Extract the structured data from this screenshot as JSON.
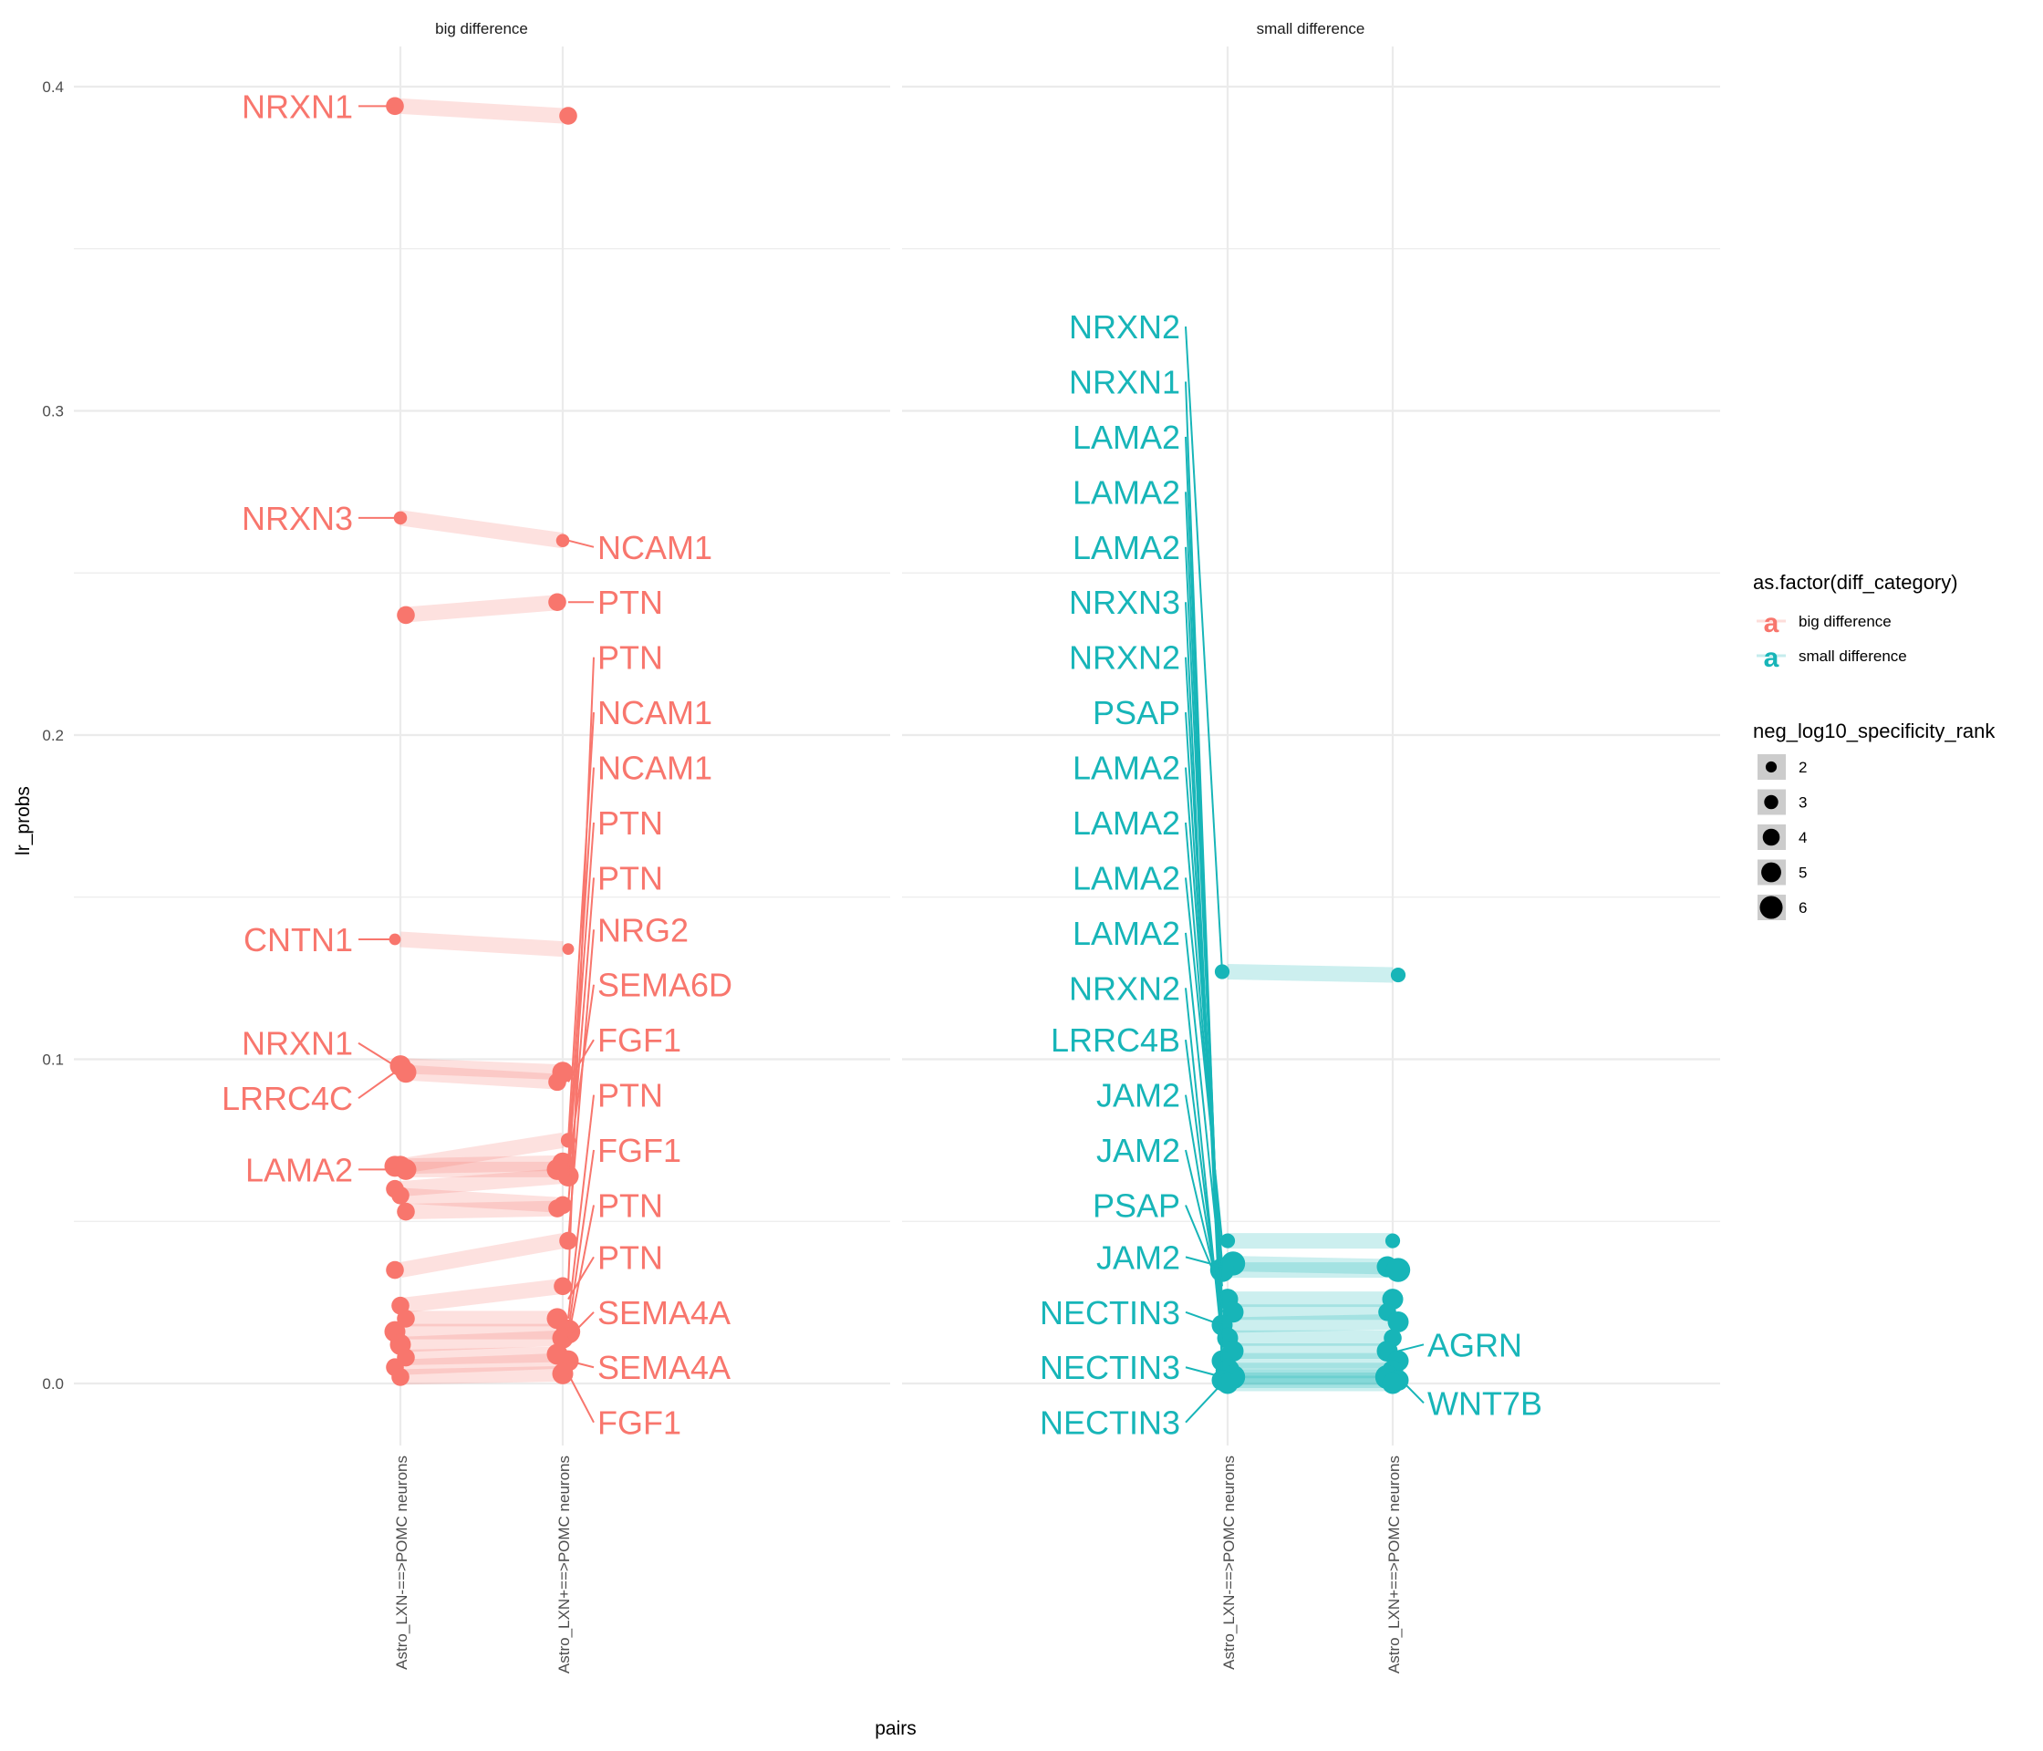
{
  "colors": {
    "big": "#F8766D",
    "small": "#17B5B8",
    "grid": "#EBEBEB"
  },
  "chart_data": {
    "type": "line",
    "ylabel": "lr_probs",
    "xlabel": "pairs",
    "ylim": [
      -0.005,
      0.415
    ],
    "yticks": [
      "0.0",
      "0.1",
      "0.2",
      "0.3",
      "0.4"
    ],
    "ytick_values": [
      0.0,
      0.1,
      0.2,
      0.3,
      0.4
    ],
    "x_categories": [
      "Astro_LXN-==>POMC neurons",
      "Astro_LXN+==>POMC neurons"
    ],
    "grid": true,
    "panels": [
      {
        "strip": "big difference",
        "color_key": "big",
        "pairs": [
          {
            "a": 0.394,
            "b": 0.391,
            "sa": 4,
            "sb": 4
          },
          {
            "a": 0.267,
            "b": 0.26,
            "sa": 2.5,
            "sb": 2.5
          },
          {
            "a": 0.237,
            "b": 0.241,
            "sa": 4,
            "sb": 4
          },
          {
            "a": 0.137,
            "b": 0.134,
            "sa": 2,
            "sb": 2
          },
          {
            "a": 0.098,
            "b": 0.096,
            "sa": 5,
            "sb": 5
          },
          {
            "a": 0.096,
            "b": 0.093,
            "sa": 5,
            "sb": 4
          },
          {
            "a": 0.067,
            "b": 0.075,
            "sa": 5,
            "sb": 3
          },
          {
            "a": 0.067,
            "b": 0.068,
            "sa": 5,
            "sb": 5
          },
          {
            "a": 0.066,
            "b": 0.066,
            "sa": 5,
            "sb": 5
          },
          {
            "a": 0.06,
            "b": 0.064,
            "sa": 4,
            "sb": 5
          },
          {
            "a": 0.058,
            "b": 0.055,
            "sa": 4,
            "sb": 4
          },
          {
            "a": 0.053,
            "b": 0.054,
            "sa": 4,
            "sb": 4
          },
          {
            "a": 0.035,
            "b": 0.044,
            "sa": 4,
            "sb": 4
          },
          {
            "a": 0.024,
            "b": 0.03,
            "sa": 4,
            "sb": 4
          },
          {
            "a": 0.02,
            "b": 0.02,
            "sa": 4,
            "sb": 5
          },
          {
            "a": 0.016,
            "b": 0.016,
            "sa": 5,
            "sb": 6
          },
          {
            "a": 0.012,
            "b": 0.014,
            "sa": 5,
            "sb": 5
          },
          {
            "a": 0.008,
            "b": 0.009,
            "sa": 4,
            "sb": 5
          },
          {
            "a": 0.005,
            "b": 0.007,
            "sa": 4,
            "sb": 5
          },
          {
            "a": 0.002,
            "b": 0.003,
            "sa": 4,
            "sb": 5
          }
        ],
        "left_labels": [
          {
            "text": "NRXN1",
            "y": 0.394,
            "ty": 0.394
          },
          {
            "text": "NRXN3",
            "y": 0.267,
            "ty": 0.267
          },
          {
            "text": "CNTN1",
            "y": 0.137,
            "ty": 0.137
          },
          {
            "text": "NRXN1",
            "y": 0.098,
            "ty": 0.105
          },
          {
            "text": "LRRC4C",
            "y": 0.096,
            "ty": 0.088
          },
          {
            "text": "LAMA2",
            "y": 0.066,
            "ty": 0.066
          }
        ],
        "right_labels": [
          {
            "text": "NCAM1",
            "y": 0.26,
            "ty": 0.258
          },
          {
            "text": "PTN",
            "y": 0.241,
            "ty": 0.241
          },
          {
            "text": "PTN",
            "y": 0.03,
            "ty": 0.224
          },
          {
            "text": "NCAM1",
            "y": 0.075,
            "ty": 0.207
          },
          {
            "text": "NCAM1",
            "y": 0.068,
            "ty": 0.19
          },
          {
            "text": "PTN",
            "y": 0.064,
            "ty": 0.173
          },
          {
            "text": "PTN",
            "y": 0.055,
            "ty": 0.156
          },
          {
            "text": "NRG2",
            "y": 0.044,
            "ty": 0.14
          },
          {
            "text": "SEMA6D",
            "y": 0.066,
            "ty": 0.123
          },
          {
            "text": "FGF1",
            "y": 0.093,
            "ty": 0.106
          },
          {
            "text": "PTN",
            "y": 0.02,
            "ty": 0.089
          },
          {
            "text": "FGF1",
            "y": 0.016,
            "ty": 0.072
          },
          {
            "text": "PTN",
            "y": 0.014,
            "ty": 0.055
          },
          {
            "text": "PTN",
            "y": 0.026,
            "ty": 0.039
          },
          {
            "text": "SEMA4A",
            "y": 0.014,
            "ty": 0.022
          },
          {
            "text": "SEMA4A",
            "y": 0.007,
            "ty": 0.005
          },
          {
            "text": "FGF1",
            "y": 0.003,
            "ty": -0.012
          }
        ]
      },
      {
        "strip": "small difference",
        "color_key": "small",
        "pairs": [
          {
            "a": 0.127,
            "b": 0.126,
            "sa": 3,
            "sb": 3
          },
          {
            "a": 0.044,
            "b": 0.044,
            "sa": 3,
            "sb": 3
          },
          {
            "a": 0.037,
            "b": 0.036,
            "sa": 6,
            "sb": 5
          },
          {
            "a": 0.035,
            "b": 0.035,
            "sa": 6,
            "sb": 6
          },
          {
            "a": 0.026,
            "b": 0.026,
            "sa": 5,
            "sb": 5
          },
          {
            "a": 0.022,
            "b": 0.022,
            "sa": 5,
            "sb": 4
          },
          {
            "a": 0.018,
            "b": 0.019,
            "sa": 5,
            "sb": 5
          },
          {
            "a": 0.014,
            "b": 0.014,
            "sa": 5,
            "sb": 4
          },
          {
            "a": 0.01,
            "b": 0.01,
            "sa": 5,
            "sb": 5
          },
          {
            "a": 0.007,
            "b": 0.007,
            "sa": 5,
            "sb": 5
          },
          {
            "a": 0.004,
            "b": 0.004,
            "sa": 6,
            "sb": 5
          },
          {
            "a": 0.002,
            "b": 0.002,
            "sa": 6,
            "sb": 6
          },
          {
            "a": 0.001,
            "b": 0.001,
            "sa": 5,
            "sb": 5
          },
          {
            "a": 0.0,
            "b": 0.0,
            "sa": 5,
            "sb": 5
          }
        ],
        "left_labels": [
          {
            "text": "NRXN2",
            "y": 0.127,
            "ty": 0.326
          },
          {
            "text": "NRXN1",
            "y": 0.004,
            "ty": 0.309
          },
          {
            "text": "LAMA2",
            "y": 0.01,
            "ty": 0.292
          },
          {
            "text": "LAMA2",
            "y": 0.014,
            "ty": 0.275
          },
          {
            "text": "LAMA2",
            "y": 0.018,
            "ty": 0.258
          },
          {
            "text": "NRXN3",
            "y": 0.007,
            "ty": 0.241
          },
          {
            "text": "NRXN2",
            "y": 0.022,
            "ty": 0.224
          },
          {
            "text": "PSAP",
            "y": 0.026,
            "ty": 0.207
          },
          {
            "text": "LAMA2",
            "y": 0.035,
            "ty": 0.19
          },
          {
            "text": "LAMA2",
            "y": 0.037,
            "ty": 0.173
          },
          {
            "text": "LAMA2",
            "y": 0.044,
            "ty": 0.156
          },
          {
            "text": "LAMA2",
            "y": 0.03,
            "ty": 0.139
          },
          {
            "text": "NRXN2",
            "y": 0.012,
            "ty": 0.122
          },
          {
            "text": "LRRC4B",
            "y": 0.016,
            "ty": 0.106
          },
          {
            "text": "JAM2",
            "y": 0.02,
            "ty": 0.089
          },
          {
            "text": "JAM2",
            "y": 0.024,
            "ty": 0.072
          },
          {
            "text": "PSAP",
            "y": 0.028,
            "ty": 0.055
          },
          {
            "text": "JAM2",
            "y": 0.036,
            "ty": 0.039
          },
          {
            "text": "NECTIN3",
            "y": 0.018,
            "ty": 0.022
          },
          {
            "text": "NECTIN3",
            "y": 0.002,
            "ty": 0.005
          },
          {
            "text": "NECTIN3",
            "y": 0.0,
            "ty": -0.012
          }
        ],
        "right_labels": [
          {
            "text": "AGRN",
            "y": 0.01,
            "ty": 0.012
          },
          {
            "text": "WNT7B",
            "y": 0.002,
            "ty": -0.006
          }
        ]
      }
    ],
    "legend": {
      "color_title": "as.factor(diff_category)",
      "color_items": [
        {
          "label": "big difference",
          "key": "big",
          "glyph": "a"
        },
        {
          "label": "small difference",
          "key": "small",
          "glyph": "a"
        }
      ],
      "size_title": "neg_log10_specificity_rank",
      "size_items": [
        {
          "label": "2",
          "value": 2
        },
        {
          "label": "3",
          "value": 3
        },
        {
          "label": "4",
          "value": 4
        },
        {
          "label": "5",
          "value": 5
        },
        {
          "label": "6",
          "value": 6
        }
      ],
      "position": "right"
    }
  }
}
